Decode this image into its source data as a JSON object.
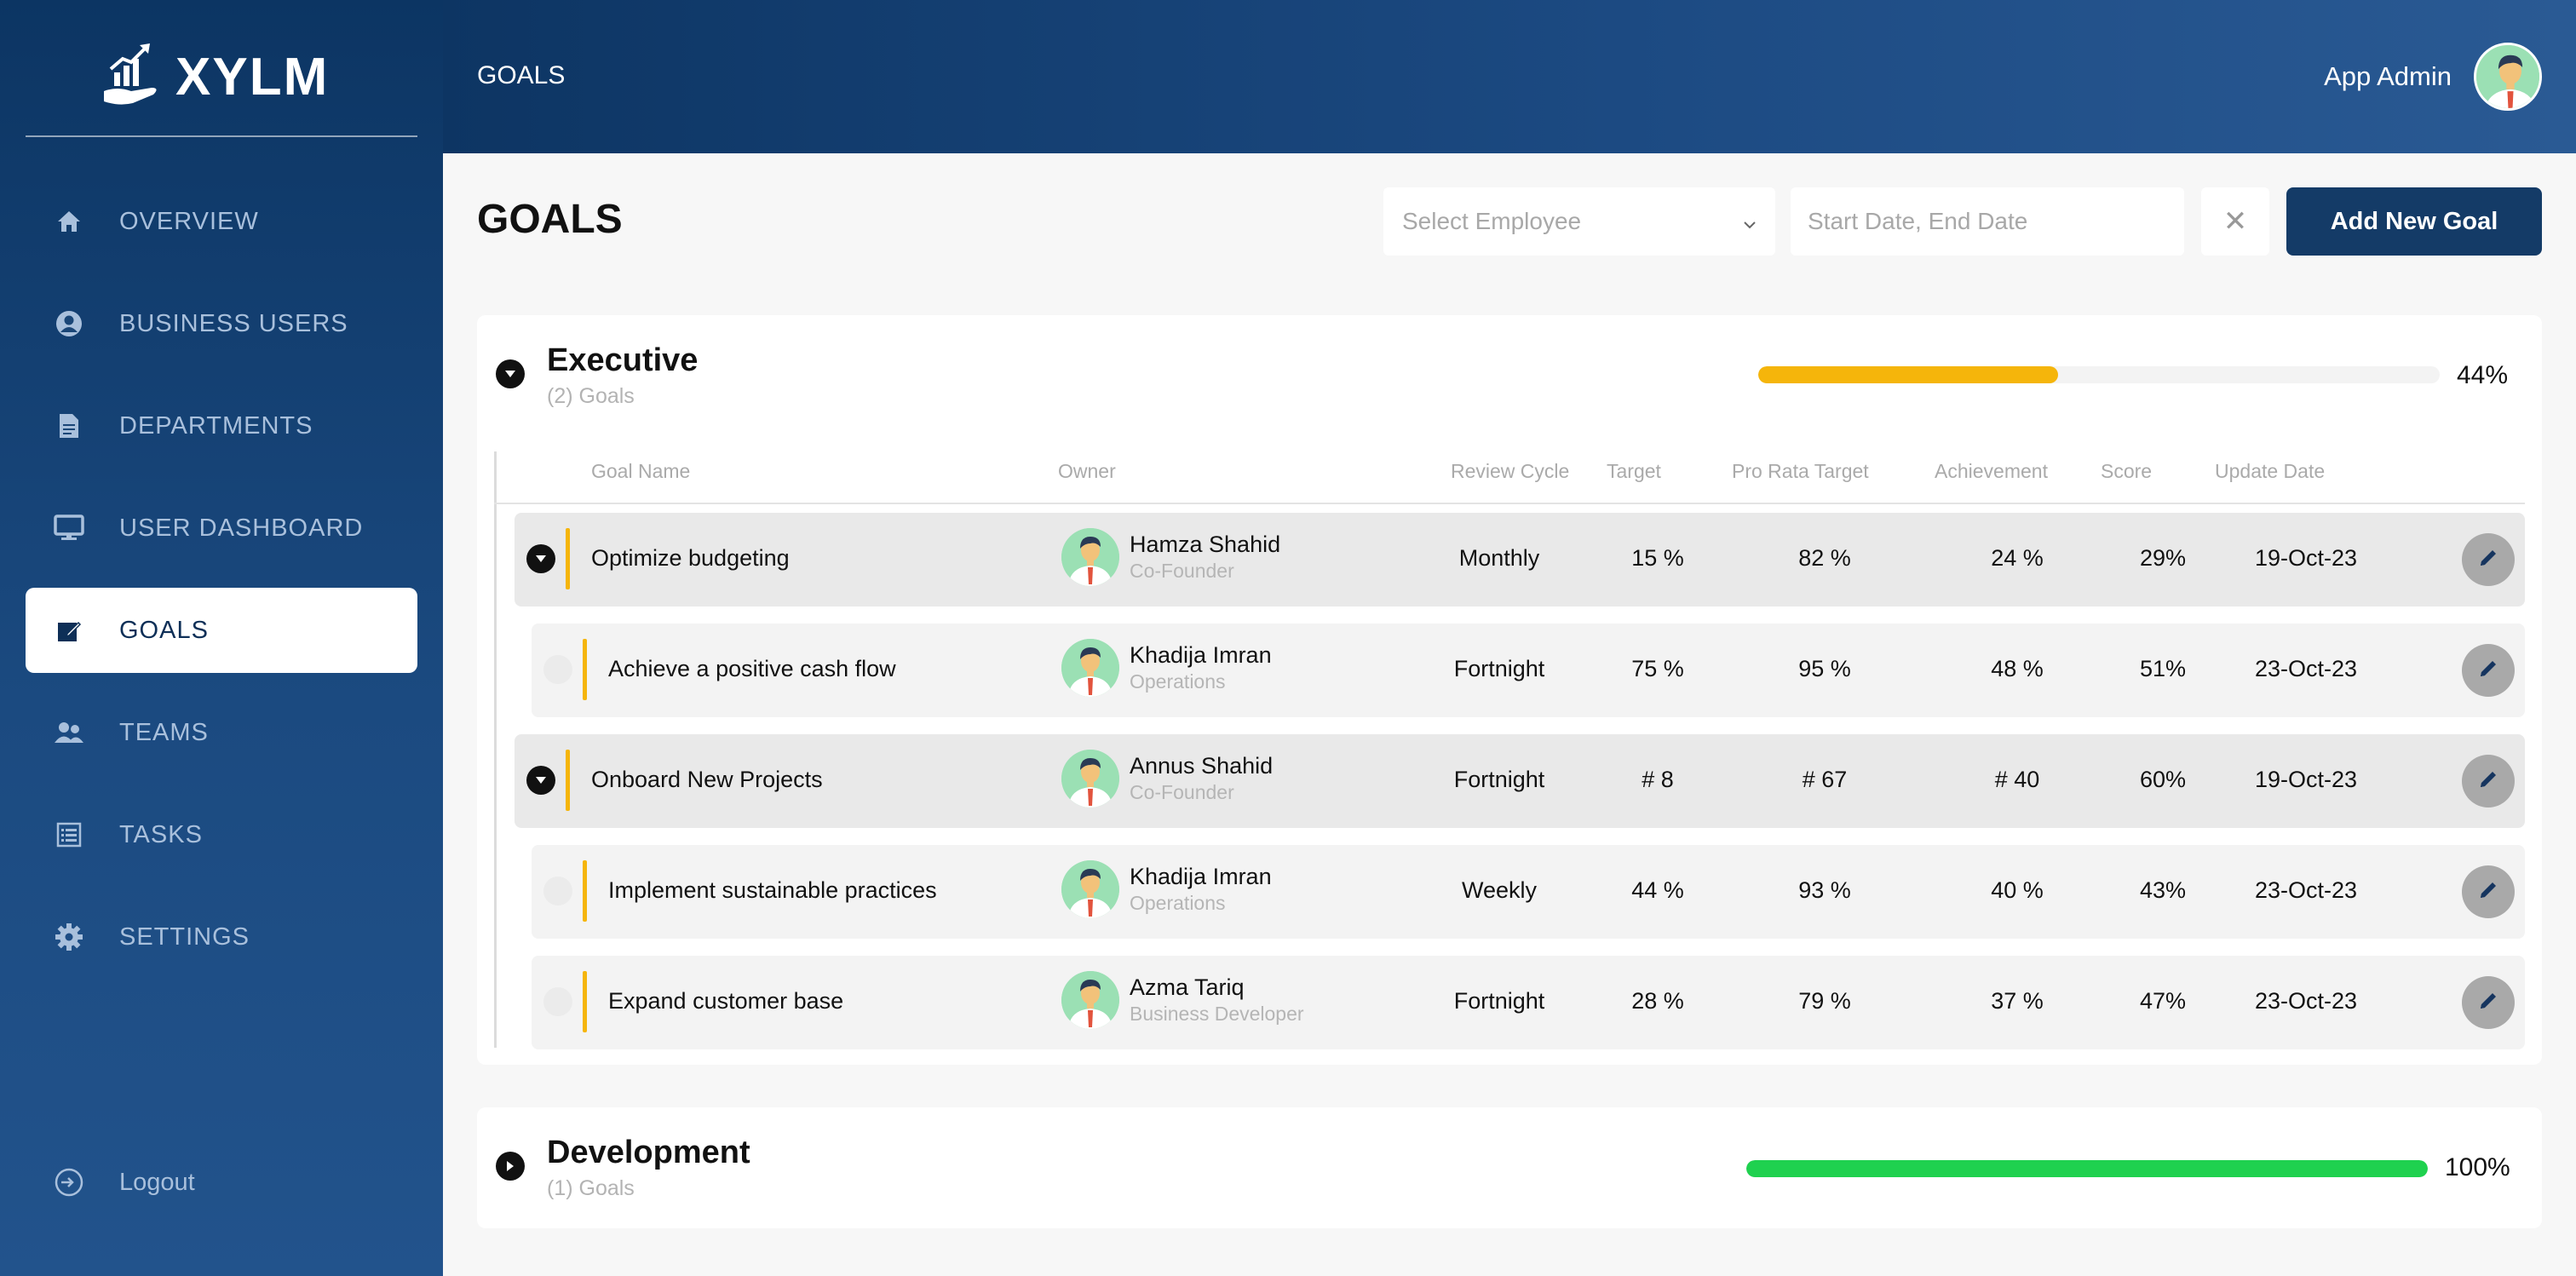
{
  "app": {
    "brand": "XYLM"
  },
  "sidebar": {
    "items": [
      {
        "label": "OVERVIEW",
        "icon": "home-icon"
      },
      {
        "label": "BUSINESS USERS",
        "icon": "user-circle-icon"
      },
      {
        "label": "DEPARTMENTS",
        "icon": "document-icon"
      },
      {
        "label": "USER DASHBOARD",
        "icon": "monitor-icon"
      },
      {
        "label": "GOALS",
        "icon": "edit-square-icon",
        "active": true
      },
      {
        "label": "TEAMS",
        "icon": "team-icon"
      },
      {
        "label": "TASKS",
        "icon": "list-icon"
      },
      {
        "label": "SETTINGS",
        "icon": "gear-icon"
      }
    ],
    "logout": "Logout"
  },
  "header": {
    "breadcrumb": "GOALS",
    "user_name": "App Admin"
  },
  "toolbar": {
    "title": "GOALS",
    "employee_placeholder": "Select Employee",
    "date_placeholder": "Start Date, End Date",
    "clear": "✕",
    "add_button": "Add New Goal"
  },
  "columns": {
    "goal_name": "Goal Name",
    "owner": "Owner",
    "review_cycle": "Review Cycle",
    "target": "Target",
    "pro_rata": "Pro Rata Target",
    "achievement": "Achievement",
    "score": "Score",
    "update_date": "Update Date"
  },
  "groups": [
    {
      "name": "Executive",
      "count": "(2) Goals",
      "progress_fraction": 0.44,
      "progress_label": "44%",
      "progress_color": "#f5b50b",
      "expanded": true,
      "rows": [
        {
          "level": "parent",
          "name": "Optimize budgeting",
          "owner": "Hamza Shahid",
          "role": "Co-Founder",
          "cycle": "Monthly",
          "target": "15 %",
          "pro_rata": "82 %",
          "achievement": "24 %",
          "score": "29%",
          "date": "19-Oct-23"
        },
        {
          "level": "child",
          "name": "Achieve a positive cash flow",
          "owner": "Khadija Imran",
          "role": "Operations",
          "cycle": "Fortnight",
          "target": "75 %",
          "pro_rata": "95 %",
          "achievement": "48 %",
          "score": "51%",
          "date": "23-Oct-23"
        },
        {
          "level": "parent",
          "name": "Onboard New Projects",
          "owner": "Annus Shahid",
          "role": "Co-Founder",
          "cycle": "Fortnight",
          "target": "# 8",
          "pro_rata": "# 67",
          "achievement": "# 40",
          "score": "60%",
          "date": "19-Oct-23"
        },
        {
          "level": "child",
          "name": "Implement sustainable practices",
          "owner": "Khadija Imran",
          "role": "Operations",
          "cycle": "Weekly",
          "target": "44 %",
          "pro_rata": "93 %",
          "achievement": "40 %",
          "score": "43%",
          "date": "23-Oct-23"
        },
        {
          "level": "child",
          "name": "Expand customer base",
          "owner": "Azma Tariq",
          "role": "Business Developer",
          "cycle": "Fortnight",
          "target": "28 %",
          "pro_rata": "79 %",
          "achievement": "37 %",
          "score": "47%",
          "date": "23-Oct-23"
        }
      ]
    },
    {
      "name": "Development",
      "count": "(1) Goals",
      "progress_fraction": 1.0,
      "progress_label": "100%",
      "progress_color": "#1fd14f",
      "expanded": false,
      "rows": []
    }
  ]
}
